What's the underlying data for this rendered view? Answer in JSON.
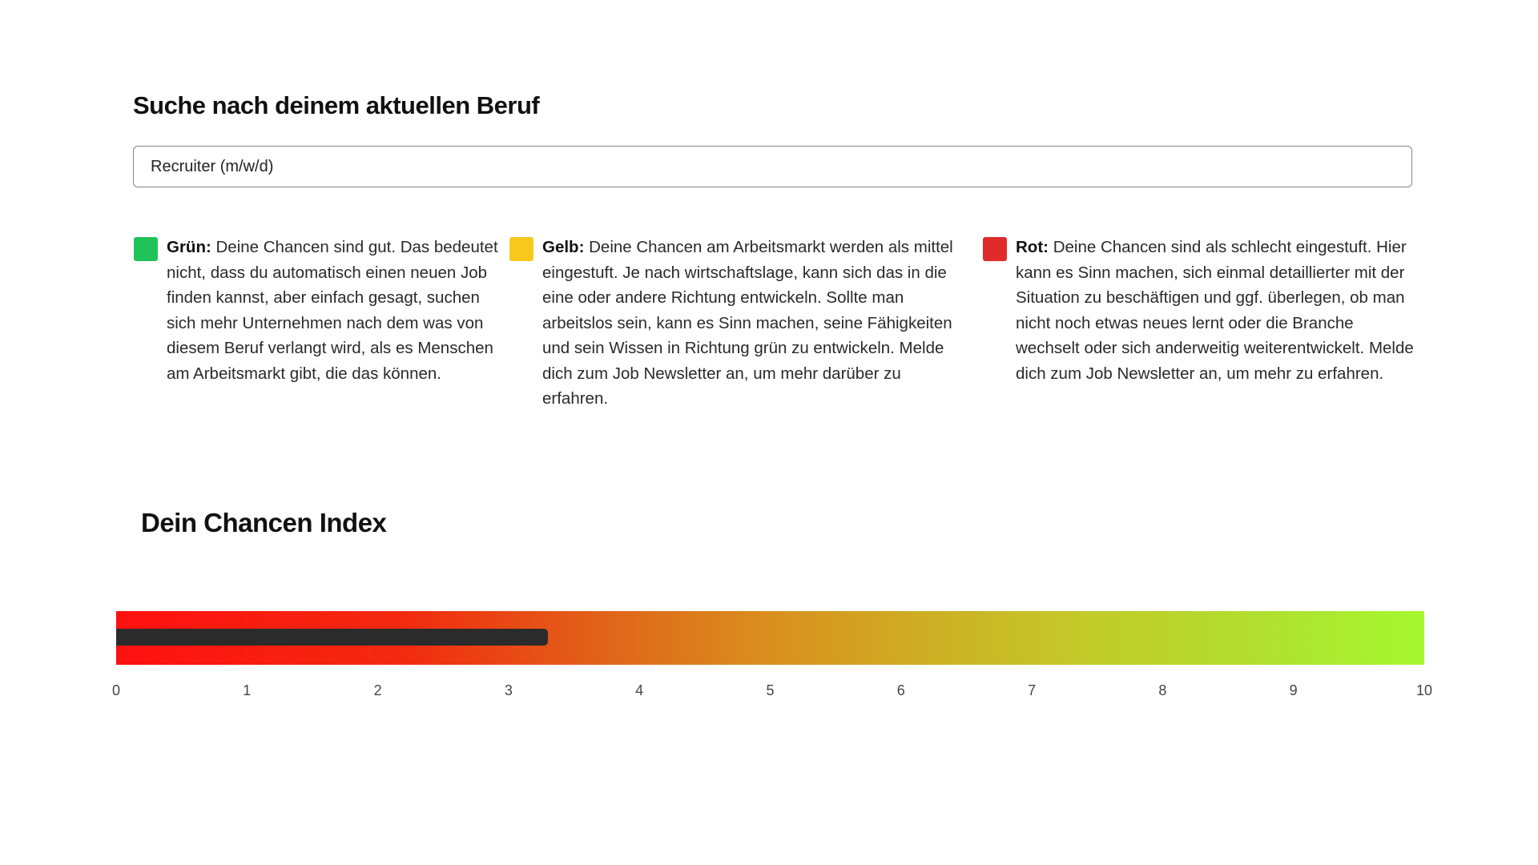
{
  "search": {
    "title": "Suche nach deinem aktuellen Beruf",
    "input_value": "Recruiter (m/w/d)"
  },
  "legend": [
    {
      "label": "Grün:",
      "color": "#1fc35a",
      "text": "Deine Chancen sind gut. Das bedeutet nicht, dass du automatisch einen neuen Job finden kannst, aber einfach gesagt, suchen sich mehr Unternehmen nach dem was von diesem Beruf verlangt wird, als es Menschen am Arbeitsmarkt gibt, die das können."
    },
    {
      "label": "Gelb:",
      "color": "#f8c81c",
      "text": "Deine Chancen am Arbeitsmarkt werden als mittel eingestuft. Je nach wirtschaftslage, kann sich das in die eine oder andere Richtung entwickeln. Sollte man arbeitslos sein, kann es Sinn machen, seine Fähigkeiten und sein Wissen in Richtung grün zu entwickeln. Melde dich zum Job Newsletter an, um mehr darüber zu erfahren."
    },
    {
      "label": "Rot:",
      "color": "#e02b2b",
      "text": "Deine Chancen sind als schlecht eingestuft. Hier kann es Sinn machen, sich einmal detaillierter mit der Situation zu beschäftigen und ggf. überlegen, ob man nicht noch etwas neues lernt oder die Branche wechselt oder sich anderweitig weiterentwickelt. Melde dich zum Job Newsletter an, um mehr zu erfahren."
    }
  ],
  "index": {
    "title": "Dein Chancen Index",
    "value": 3.3,
    "xlim": [
      0,
      10
    ],
    "xticks": [
      0,
      1,
      2,
      3,
      4,
      5,
      6,
      7,
      8,
      9,
      10
    ]
  }
}
